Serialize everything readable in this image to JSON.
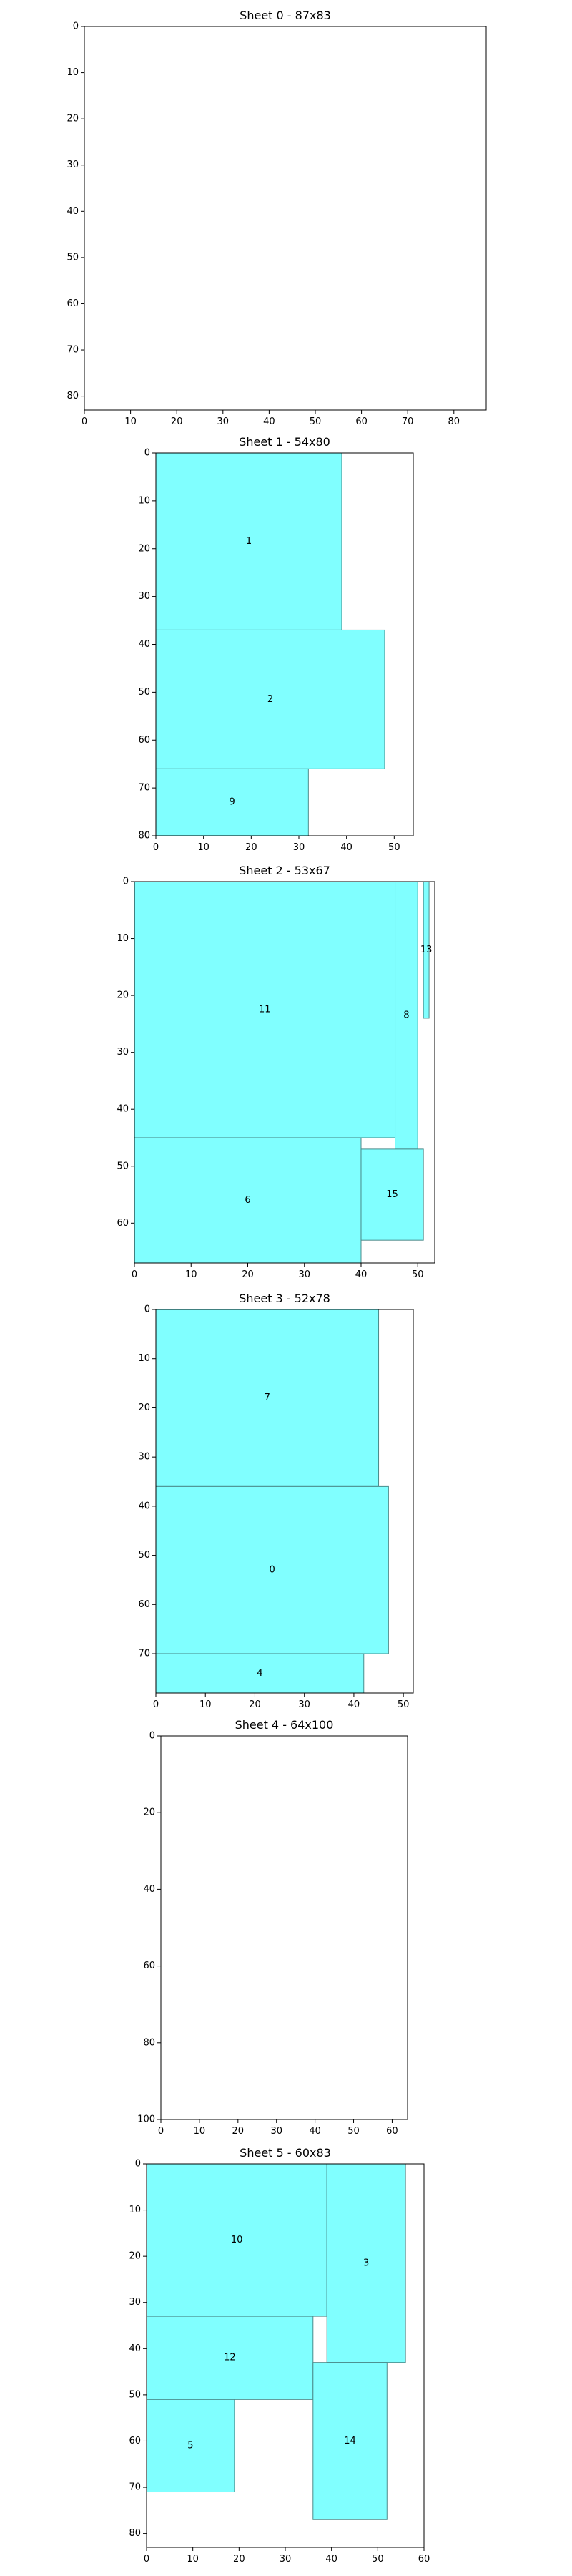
{
  "chart_data": [
    {
      "type": "rectangles",
      "title": "Sheet 0 - 87x83",
      "sheet_width": 87,
      "sheet_height": 83,
      "xlim": [
        0,
        87
      ],
      "ylim": [
        83,
        0
      ],
      "xticks": [
        0,
        10,
        20,
        30,
        40,
        50,
        60,
        70,
        80
      ],
      "yticks": [
        0,
        10,
        20,
        30,
        40,
        50,
        60,
        70,
        80
      ],
      "pieces": []
    },
    {
      "type": "rectangles",
      "title": "Sheet 1 - 54x80",
      "sheet_width": 54,
      "sheet_height": 80,
      "xlim": [
        0,
        54
      ],
      "ylim": [
        80,
        0
      ],
      "xticks": [
        0,
        10,
        20,
        30,
        40,
        50
      ],
      "yticks": [
        0,
        10,
        20,
        30,
        40,
        50,
        60,
        70,
        80
      ],
      "pieces": [
        {
          "label": "1",
          "x": 0,
          "y": 0,
          "w": 39,
          "h": 37
        },
        {
          "label": "2",
          "x": 0,
          "y": 37,
          "w": 48,
          "h": 29
        },
        {
          "label": "9",
          "x": 0,
          "y": 66,
          "w": 32,
          "h": 14
        }
      ]
    },
    {
      "type": "rectangles",
      "title": "Sheet 2 - 53x67",
      "sheet_width": 53,
      "sheet_height": 67,
      "xlim": [
        0,
        53
      ],
      "ylim": [
        67,
        0
      ],
      "xticks": [
        0,
        10,
        20,
        30,
        40,
        50
      ],
      "yticks": [
        0,
        10,
        20,
        30,
        40,
        50,
        60
      ],
      "pieces": [
        {
          "label": "11",
          "x": 0,
          "y": 0,
          "w": 46,
          "h": 45
        },
        {
          "label": "8",
          "x": 46,
          "y": 0,
          "w": 4,
          "h": 47
        },
        {
          "label": "13",
          "x": 51,
          "y": 0,
          "w": 1,
          "h": 24
        },
        {
          "label": "6",
          "x": 0,
          "y": 45,
          "w": 40,
          "h": 22
        },
        {
          "label": "15",
          "x": 40,
          "y": 47,
          "w": 11,
          "h": 16
        }
      ]
    },
    {
      "type": "rectangles",
      "title": "Sheet 3 - 52x78",
      "sheet_width": 52,
      "sheet_height": 78,
      "xlim": [
        0,
        52
      ],
      "ylim": [
        78,
        0
      ],
      "xticks": [
        0,
        10,
        20,
        30,
        40,
        50
      ],
      "yticks": [
        0,
        10,
        20,
        30,
        40,
        50,
        60,
        70
      ],
      "pieces": [
        {
          "label": "7",
          "x": 0,
          "y": 0,
          "w": 45,
          "h": 36
        },
        {
          "label": "0",
          "x": 0,
          "y": 36,
          "w": 47,
          "h": 34
        },
        {
          "label": "4",
          "x": 0,
          "y": 70,
          "w": 42,
          "h": 8
        }
      ]
    },
    {
      "type": "rectangles",
      "title": "Sheet 4 - 64x100",
      "sheet_width": 64,
      "sheet_height": 100,
      "xlim": [
        0,
        64
      ],
      "ylim": [
        100,
        0
      ],
      "xticks": [
        0,
        10,
        20,
        30,
        40,
        50,
        60
      ],
      "yticks": [
        0,
        20,
        40,
        60,
        80,
        100
      ],
      "pieces": []
    },
    {
      "type": "rectangles",
      "title": "Sheet 5 - 60x83",
      "sheet_width": 60,
      "sheet_height": 83,
      "xlim": [
        0,
        60
      ],
      "ylim": [
        83,
        0
      ],
      "xticks": [
        0,
        10,
        20,
        30,
        40,
        50,
        60
      ],
      "yticks": [
        0,
        10,
        20,
        30,
        40,
        50,
        60,
        70,
        80
      ],
      "pieces": [
        {
          "label": "10",
          "x": 0,
          "y": 0,
          "w": 39,
          "h": 33
        },
        {
          "label": "3",
          "x": 39,
          "y": 0,
          "w": 17,
          "h": 43
        },
        {
          "label": "12",
          "x": 0,
          "y": 33,
          "w": 36,
          "h": 18
        },
        {
          "label": "5",
          "x": 0,
          "y": 51,
          "w": 19,
          "h": 20
        },
        {
          "label": "14",
          "x": 36,
          "y": 43,
          "w": 16,
          "h": 34
        }
      ]
    }
  ]
}
